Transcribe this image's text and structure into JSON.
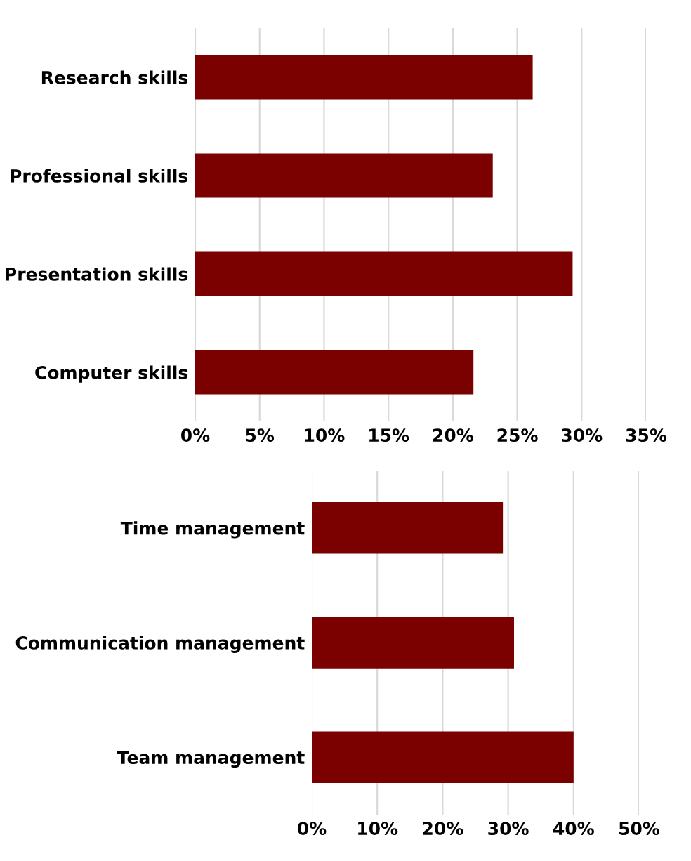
{
  "chart_data": [
    {
      "type": "bar",
      "orientation": "horizontal",
      "categories": [
        "Research skills",
        "Professional skills",
        "Presentation skills",
        "Computer skills"
      ],
      "values": [
        26.2,
        23.1,
        29.3,
        21.6
      ],
      "color": "#7b0000",
      "xlim": [
        0,
        35
      ],
      "xticks": [
        {
          "value": 0,
          "label": "0%"
        },
        {
          "value": 5,
          "label": "5%"
        },
        {
          "value": 10,
          "label": "10%"
        },
        {
          "value": 15,
          "label": "15%"
        },
        {
          "value": 20,
          "label": "20%"
        },
        {
          "value": 25,
          "label": "25%"
        },
        {
          "value": 30,
          "label": "30%"
        },
        {
          "value": 35,
          "label": "35%"
        }
      ],
      "grid": "x"
    },
    {
      "type": "bar",
      "orientation": "horizontal",
      "categories": [
        "Time management",
        "Communication management",
        "Team management"
      ],
      "values": [
        29.2,
        30.9,
        40.0
      ],
      "color": "#7b0000",
      "xlim": [
        0,
        50
      ],
      "xticks": [
        {
          "value": 0,
          "label": "0%"
        },
        {
          "value": 10,
          "label": "10%"
        },
        {
          "value": 20,
          "label": "20%"
        },
        {
          "value": 30,
          "label": "30%"
        },
        {
          "value": 40,
          "label": "40%"
        },
        {
          "value": 50,
          "label": "50%"
        }
      ],
      "grid": "x"
    }
  ]
}
